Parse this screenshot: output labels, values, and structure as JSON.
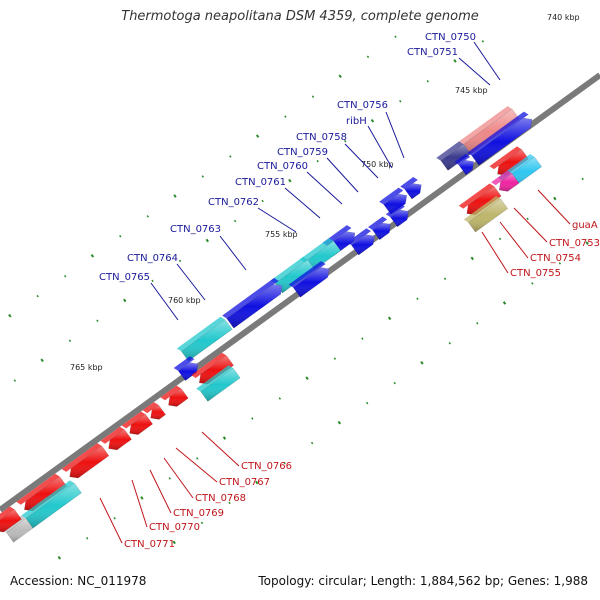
{
  "title": "Thermotoga neapolitana DSM 4359, complete genome",
  "footer": {
    "accession": "Accession: NC_011978",
    "summary": "Topology: circular; Length: 1,884,562 bp; Genes: 1,988"
  },
  "scale_labels": [
    "740 kbp",
    "745 kbp",
    "750 kbp",
    "755 kbp",
    "760 kbp",
    "765 kbp"
  ],
  "colors": {
    "backbone": "#7a7a7a",
    "forward_gene": "#1010e0",
    "reverse_gene": "#ee1010",
    "cyan_gene": "#22c8cc",
    "navy_gene": "#3a3a8c",
    "pink_gene": "#ee8888",
    "olive_gene": "#bdb56a",
    "magenta_gene": "#ee22a0",
    "light_blue_gene": "#2ec6f0",
    "grey_gene": "#bbbbbb",
    "tick": "#2a8a2a",
    "label_top": "#1a1a9a",
    "label_bottom": "#c0151a"
  },
  "labels_top": [
    "CTN_0750",
    "CTN_0751",
    "CTN_0756",
    "ribH",
    "CTN_0758",
    "CTN_0759",
    "CTN_0760",
    "CTN_0761",
    "CTN_0762",
    "CTN_0763",
    "CTN_0764",
    "CTN_0765"
  ],
  "labels_bottom": [
    "guaA",
    "CTN_0753",
    "CTN_0754",
    "CTN_0755",
    "CTN_0766",
    "CTN_0767",
    "CTN_0768",
    "CTN_0769",
    "CTN_0770",
    "CTN_0771"
  ]
}
